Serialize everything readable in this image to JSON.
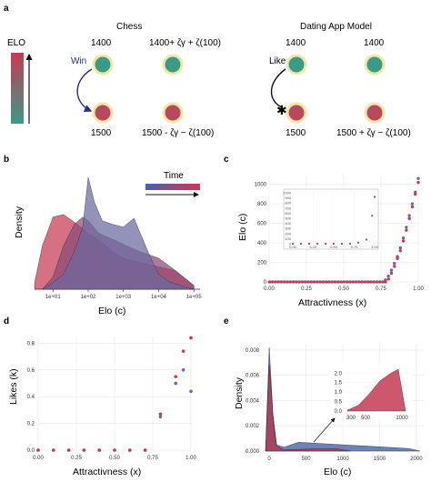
{
  "panel_labels": {
    "a": "a",
    "b": "b",
    "c": "c",
    "d": "d",
    "e": "e"
  },
  "panel_a": {
    "elo_label": "ELO",
    "chess": {
      "title": "Chess",
      "action": "Win",
      "top_left": "1400",
      "top_right": "1400+ ζγ + ζ(100)",
      "bottom_left": "1500",
      "bottom_right": "1500 - ζγ − ζ(100)"
    },
    "dating": {
      "title": "Dating App Model",
      "action": "Like",
      "top_left": "1400",
      "top_right": "1400",
      "bottom_left": "1500",
      "bottom_right": "1500 + ζγ − ζ(100)"
    },
    "colors": {
      "high": "#c63a55",
      "low": "#3b9a87",
      "node_ring": "#f2e7a8",
      "arrow_chess": "#2c2a8a",
      "arrow_dating": "#111111"
    }
  },
  "chart_data": [
    {
      "panel": "b",
      "type": "area",
      "xlabel": "Elo (c)",
      "ylabel": "Density",
      "x_scale": "log",
      "x_ticks": [
        "1e+01",
        "1e+02",
        "1e+03",
        "1e+04",
        "1e+05"
      ],
      "legend_title": "Time",
      "series": [
        {
          "color": "#6a6aa0",
          "x": [
            5,
            10,
            20,
            40,
            70,
            100,
            150,
            250,
            500,
            1000,
            2000,
            3000,
            5000,
            10000,
            20000,
            50000,
            100000
          ],
          "y": [
            0,
            0.05,
            0.12,
            0.3,
            0.5,
            0.9,
            0.7,
            0.55,
            0.52,
            0.5,
            0.57,
            0.45,
            0.3,
            0.12,
            0.06,
            0.02,
            0
          ]
        },
        {
          "color": "#8a4a76",
          "x": [
            5,
            10,
            20,
            40,
            70,
            100,
            200,
            500,
            1000,
            3000,
            10000,
            30000,
            100000
          ],
          "y": [
            0,
            0.1,
            0.35,
            0.52,
            0.58,
            0.55,
            0.45,
            0.4,
            0.36,
            0.3,
            0.25,
            0.15,
            0.03
          ]
        },
        {
          "color": "#c63a55",
          "x": [
            3,
            5,
            10,
            20,
            50,
            100,
            200,
            500,
            1000,
            5000,
            10000,
            30000,
            100000
          ],
          "y": [
            0.05,
            0.35,
            0.58,
            0.6,
            0.52,
            0.45,
            0.4,
            0.3,
            0.25,
            0.2,
            0.18,
            0.15,
            0.03
          ]
        }
      ]
    },
    {
      "panel": "c",
      "type": "scatter",
      "xlabel": "Attractivness (x)",
      "ylabel": "Elo (c)",
      "xlim": [
        0,
        1
      ],
      "ylim": [
        0,
        1100
      ],
      "x_ticks": [
        "0.00",
        "0.25",
        "0.50",
        "0.75",
        "1.00"
      ],
      "y_ticks": [
        "0",
        "200",
        "400",
        "600",
        "800",
        "1000"
      ],
      "series": [
        {
          "name": "",
          "color": "#6a6aa0",
          "x": [
            0.78,
            0.8,
            0.82,
            0.84,
            0.86,
            0.88,
            0.9,
            0.92,
            0.94,
            0.96,
            0.98,
            1.0
          ],
          "y": [
            20,
            60,
            120,
            190,
            260,
            350,
            450,
            560,
            680,
            800,
            920,
            1060
          ]
        },
        {
          "name": "",
          "color": "#c63a55",
          "x": [
            0.78,
            0.8,
            0.82,
            0.84,
            0.86,
            0.88,
            0.9,
            0.92,
            0.94,
            0.96,
            0.98,
            1.0
          ],
          "y": [
            0,
            30,
            90,
            160,
            240,
            320,
            420,
            530,
            650,
            770,
            900,
            1020
          ]
        }
      ],
      "inset": {
        "xlim": [
          0,
          1
        ],
        "ylim": [
          0,
          1000
        ],
        "x_ticks": [
          "0.00",
          "0.25",
          "0.50",
          "0.75",
          "1.00"
        ],
        "y_ticks": [
          "0",
          "100",
          "200",
          "300",
          "400",
          "500",
          "600",
          "700",
          "800",
          "900",
          "1000"
        ],
        "points": [
          {
            "x": 0.0,
            "y": 0
          },
          {
            "x": 0.1,
            "y": 0
          },
          {
            "x": 0.2,
            "y": 0
          },
          {
            "x": 0.3,
            "y": 0
          },
          {
            "x": 0.4,
            "y": 0
          },
          {
            "x": 0.5,
            "y": 0
          },
          {
            "x": 0.6,
            "y": 0
          },
          {
            "x": 0.7,
            "y": 0
          },
          {
            "x": 0.8,
            "y": 20
          },
          {
            "x": 0.9,
            "y": 80
          },
          {
            "x": 0.97,
            "y": 550
          },
          {
            "x": 1.0,
            "y": 920
          }
        ]
      }
    },
    {
      "panel": "d",
      "type": "scatter",
      "xlabel": "Attractivness (x)",
      "ylabel": "Likes (k)",
      "xlim": [
        0,
        1
      ],
      "ylim": [
        0,
        0.85
      ],
      "x_ticks": [
        "0.00",
        "0.25",
        "0.50",
        "0.75",
        "1.00"
      ],
      "y_ticks": [
        "0.0",
        "0.2",
        "0.4",
        "0.6",
        "0.8"
      ],
      "series": [
        {
          "name": "",
          "color": "#6a6aa0",
          "x": [
            0,
            0.1,
            0.2,
            0.3,
            0.4,
            0.5,
            0.6,
            0.7,
            0.8,
            0.9,
            0.95,
            1.0
          ],
          "y": [
            0,
            0,
            0,
            0,
            0,
            0,
            0,
            0,
            0.25,
            0.5,
            0.6,
            0.44
          ]
        },
        {
          "name": "",
          "color": "#c63a55",
          "x": [
            0,
            0.1,
            0.2,
            0.3,
            0.4,
            0.5,
            0.6,
            0.7,
            0.8,
            0.9,
            0.95,
            1.0
          ],
          "y": [
            0,
            0,
            0,
            0,
            0,
            0,
            0,
            0,
            0.27,
            0.55,
            0.74,
            0.84
          ]
        }
      ]
    },
    {
      "panel": "e",
      "type": "area",
      "xlabel": "Elo (c)",
      "ylabel": "Density",
      "xlim": [
        -100,
        2100
      ],
      "ylim": [
        0,
        0.0085
      ],
      "x_ticks": [
        "0",
        "500",
        "1000",
        "1500",
        "2000"
      ],
      "y_ticks": [
        "0.000",
        "0.002",
        "0.004",
        "0.006",
        "0.008"
      ],
      "series": [
        {
          "color": "#4a63a8",
          "x": [
            -50,
            0,
            50,
            100,
            200,
            400,
            700,
            1000,
            1300,
            1600,
            1900,
            2050
          ],
          "y": [
            0,
            0.0082,
            0.003,
            0.0005,
            0.0003,
            0.0007,
            0.0006,
            0.0005,
            0.0004,
            0.0003,
            0.0002,
            0
          ]
        },
        {
          "color": "#b4344f",
          "x": [
            -50,
            0,
            30,
            60,
            100,
            200,
            500,
            900,
            1100
          ],
          "y": [
            0,
            0.0068,
            0.0045,
            0.002,
            0.0004,
            0.0001,
            0.00015,
            0.0002,
            0
          ]
        }
      ],
      "inset": {
        "x_ticks": [
          "300",
          "500",
          "1000"
        ],
        "y_ticks": [
          "0.0",
          "0.5",
          "1.0",
          "1.5",
          "2.0"
        ],
        "x": [
          250,
          400,
          550,
          700,
          850,
          950,
          1050
        ],
        "y": [
          0.05,
          0.3,
          0.9,
          1.6,
          2.0,
          2.2,
          0.0
        ]
      }
    }
  ]
}
